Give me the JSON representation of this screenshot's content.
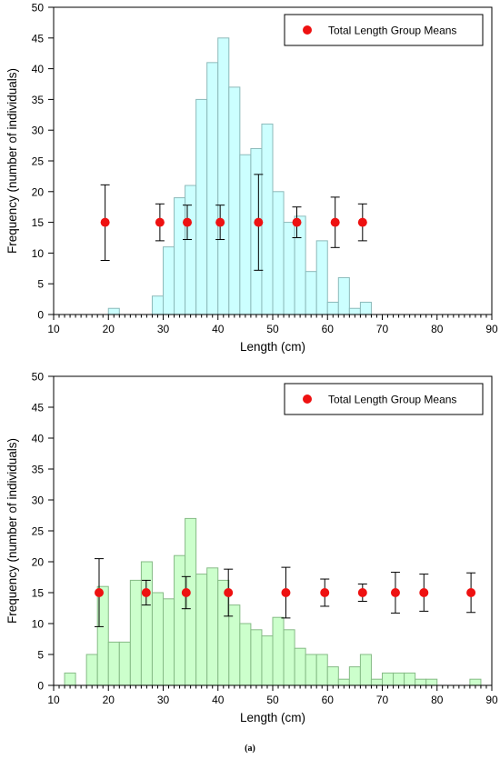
{
  "panel_label": "(a)",
  "chart_data": [
    {
      "type": "bar",
      "xlabel": "Length (cm)",
      "ylabel": "Frequency (number of individuals)",
      "xlim": [
        10,
        90
      ],
      "ylim": [
        0,
        50
      ],
      "x_ticks": [
        10,
        20,
        30,
        40,
        50,
        60,
        70,
        80,
        90
      ],
      "y_ticks": [
        0,
        5,
        10,
        15,
        20,
        25,
        30,
        35,
        40,
        45,
        50
      ],
      "bin_width": 2,
      "bar_color": "#ccffff",
      "bar_edge_color": "#8cbaba",
      "bins_x_start": [
        20,
        22,
        24,
        26,
        28,
        30,
        32,
        34,
        36,
        38,
        40,
        42,
        44,
        46,
        48,
        50,
        52,
        54,
        56,
        58,
        60,
        62,
        64,
        66
      ],
      "values": [
        1,
        0,
        0,
        0,
        3,
        11,
        19,
        21,
        35,
        41,
        45,
        37,
        26,
        27,
        31,
        20,
        15,
        16,
        7,
        12,
        2,
        6,
        1,
        2
      ],
      "legend": {
        "label": "Total Length Group Means",
        "position": "top-right"
      },
      "means": {
        "marker_color": "#ee1111",
        "points": [
          {
            "x": 19.4,
            "y": 15,
            "lo": 8.8,
            "hi": 21.1
          },
          {
            "x": 29.4,
            "y": 15,
            "lo": 12.0,
            "hi": 18.0
          },
          {
            "x": 34.4,
            "y": 15,
            "lo": 12.2,
            "hi": 17.8
          },
          {
            "x": 40.4,
            "y": 15,
            "lo": 12.2,
            "hi": 17.8
          },
          {
            "x": 47.4,
            "y": 15,
            "lo": 7.2,
            "hi": 22.8
          },
          {
            "x": 54.4,
            "y": 15,
            "lo": 12.5,
            "hi": 17.5
          },
          {
            "x": 61.4,
            "y": 15,
            "lo": 10.9,
            "hi": 19.1
          },
          {
            "x": 66.4,
            "y": 15,
            "lo": 12.0,
            "hi": 18.0
          }
        ]
      }
    },
    {
      "type": "bar",
      "xlabel": "Length (cm)",
      "ylabel": "Frequency (number of individuals)",
      "xlim": [
        10,
        90
      ],
      "ylim": [
        0,
        50
      ],
      "x_ticks": [
        10,
        20,
        30,
        40,
        50,
        60,
        70,
        80,
        90
      ],
      "y_ticks": [
        0,
        5,
        10,
        15,
        20,
        25,
        30,
        35,
        40,
        45,
        50
      ],
      "bin_width": 2,
      "bar_color": "#ccffcc",
      "bar_edge_color": "#86bb86",
      "bins_x_start": [
        12,
        14,
        16,
        18,
        20,
        22,
        24,
        26,
        28,
        30,
        32,
        34,
        36,
        38,
        40,
        42,
        44,
        46,
        48,
        50,
        52,
        54,
        56,
        58,
        60,
        62,
        64,
        66,
        68,
        70,
        72,
        74,
        76,
        78,
        80,
        82,
        84,
        86
      ],
      "values": [
        2,
        0,
        5,
        16,
        7,
        7,
        17,
        20,
        15,
        14,
        21,
        27,
        18,
        19,
        17,
        13,
        10,
        9,
        8,
        11,
        9,
        6,
        5,
        5,
        3,
        1,
        3,
        5,
        1,
        2,
        2,
        2,
        1,
        1,
        0,
        0,
        0,
        1
      ],
      "legend": {
        "label": "Total Length Group Means",
        "position": "top-right"
      },
      "means": {
        "marker_color": "#ee1111",
        "points": [
          {
            "x": 18.3,
            "y": 15,
            "lo": 9.5,
            "hi": 20.5
          },
          {
            "x": 26.9,
            "y": 15,
            "lo": 13.0,
            "hi": 17.0
          },
          {
            "x": 34.2,
            "y": 15,
            "lo": 12.4,
            "hi": 17.6
          },
          {
            "x": 41.9,
            "y": 15,
            "lo": 11.2,
            "hi": 18.8
          },
          {
            "x": 52.4,
            "y": 15,
            "lo": 10.9,
            "hi": 19.1
          },
          {
            "x": 59.5,
            "y": 15,
            "lo": 12.8,
            "hi": 17.2
          },
          {
            "x": 66.4,
            "y": 15,
            "lo": 13.6,
            "hi": 16.4
          },
          {
            "x": 72.4,
            "y": 15,
            "lo": 11.7,
            "hi": 18.3
          },
          {
            "x": 77.6,
            "y": 15,
            "lo": 12.0,
            "hi": 18.0
          },
          {
            "x": 86.2,
            "y": 15,
            "lo": 11.8,
            "hi": 18.2
          }
        ]
      }
    }
  ]
}
